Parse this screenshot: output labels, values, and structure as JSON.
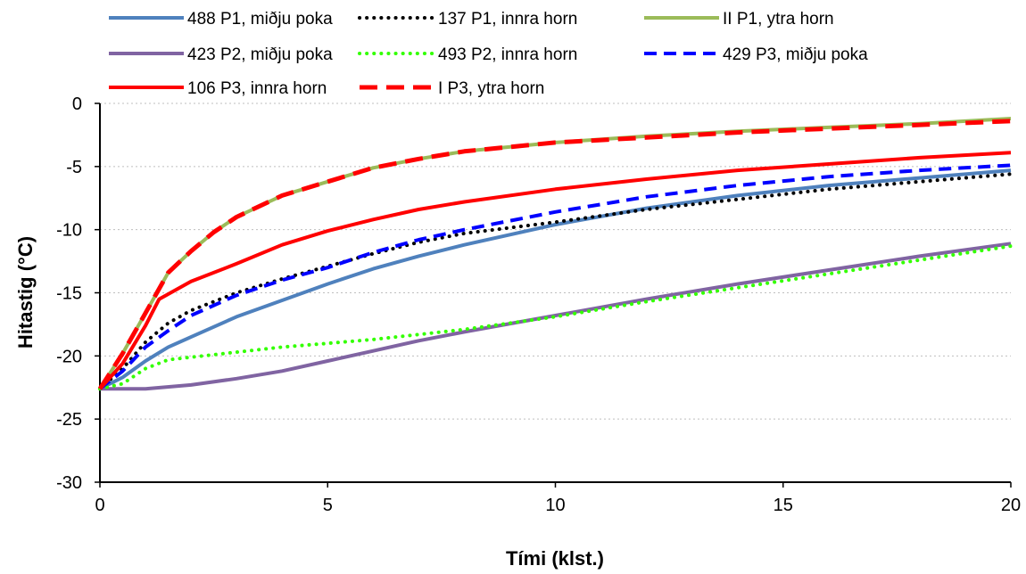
{
  "chart_data": {
    "type": "line",
    "title": "",
    "xlabel": "Tími (klst.)",
    "ylabel": "Hitastig (°C)",
    "xlim": [
      0,
      20
    ],
    "ylim": [
      -30,
      0
    ],
    "x_ticks": [
      0,
      5,
      10,
      15,
      20
    ],
    "y_ticks": [
      0,
      -5,
      -10,
      -15,
      -20,
      -25,
      -30
    ],
    "grid": "horizontal dotted",
    "legend_position": "top",
    "series": [
      {
        "name": "488 P1, miðju poka",
        "color": "#4F81BD",
        "dash": "solid",
        "points": [
          [
            0,
            -22.6
          ],
          [
            0.5,
            -21.7
          ],
          [
            1,
            -20.4
          ],
          [
            1.5,
            -19.3
          ],
          [
            2,
            -18.5
          ],
          [
            3,
            -16.9
          ],
          [
            4,
            -15.6
          ],
          [
            5,
            -14.3
          ],
          [
            6,
            -13.1
          ],
          [
            7,
            -12.1
          ],
          [
            8,
            -11.2
          ],
          [
            10,
            -9.6
          ],
          [
            12,
            -8.3
          ],
          [
            14,
            -7.3
          ],
          [
            16,
            -6.5
          ],
          [
            18,
            -5.9
          ],
          [
            20,
            -5.3
          ]
        ]
      },
      {
        "name": "137 P1, innra horn",
        "color": "#000000",
        "dash": "dotted",
        "points": [
          [
            0,
            -22.6
          ],
          [
            0.5,
            -21
          ],
          [
            1,
            -18.9
          ],
          [
            1.5,
            -17.4
          ],
          [
            2,
            -16.4
          ],
          [
            3,
            -15
          ],
          [
            4,
            -13.9
          ],
          [
            5,
            -12.9
          ],
          [
            6,
            -11.9
          ],
          [
            7,
            -11
          ],
          [
            8,
            -10.3
          ],
          [
            10,
            -9.4
          ],
          [
            12,
            -8.4
          ],
          [
            14,
            -7.6
          ],
          [
            16,
            -6.8
          ],
          [
            18,
            -6.2
          ],
          [
            20,
            -5.6
          ]
        ]
      },
      {
        "name": "II P1, ytra horn",
        "color": "#9BBB59",
        "dash": "solid",
        "points": [
          [
            0,
            -22.6
          ],
          [
            0.5,
            -19.8
          ],
          [
            1,
            -16.6
          ],
          [
            1.5,
            -13.4
          ],
          [
            2,
            -11.7
          ],
          [
            2.5,
            -10.2
          ],
          [
            3,
            -9
          ],
          [
            4,
            -7.3
          ],
          [
            5,
            -6.2
          ],
          [
            6,
            -5.1
          ],
          [
            7,
            -4.4
          ],
          [
            8,
            -3.8
          ],
          [
            10,
            -3.1
          ],
          [
            12,
            -2.6
          ],
          [
            14,
            -2.2
          ],
          [
            16,
            -1.9
          ],
          [
            18,
            -1.6
          ],
          [
            20,
            -1.2
          ]
        ]
      },
      {
        "name": "423 P2, miðju poka",
        "color": "#8064A2",
        "dash": "solid",
        "points": [
          [
            0,
            -22.6
          ],
          [
            1,
            -22.6
          ],
          [
            2,
            -22.3
          ],
          [
            3,
            -21.8
          ],
          [
            4,
            -21.2
          ],
          [
            5,
            -20.4
          ],
          [
            6,
            -19.6
          ],
          [
            7,
            -18.8
          ],
          [
            8,
            -18.1
          ],
          [
            10,
            -16.8
          ],
          [
            12,
            -15.5
          ],
          [
            14,
            -14.3
          ],
          [
            16,
            -13.2
          ],
          [
            18,
            -12.1
          ],
          [
            20,
            -11.1
          ]
        ]
      },
      {
        "name": "493 P2, innra horn",
        "color": "#33FF00",
        "dash": "dotted",
        "points": [
          [
            0,
            -22.6
          ],
          [
            0.5,
            -22.2
          ],
          [
            1,
            -21
          ],
          [
            1.5,
            -20.3
          ],
          [
            2,
            -20.1
          ],
          [
            3,
            -19.7
          ],
          [
            4,
            -19.3
          ],
          [
            5,
            -19
          ],
          [
            6,
            -18.7
          ],
          [
            7,
            -18.3
          ],
          [
            8,
            -17.9
          ],
          [
            10,
            -16.9
          ],
          [
            12,
            -15.7
          ],
          [
            14,
            -14.6
          ],
          [
            16,
            -13.5
          ],
          [
            18,
            -12.4
          ],
          [
            20,
            -11.3
          ]
        ]
      },
      {
        "name": "429 P3, miðju poka",
        "color": "#0000FF",
        "dash": "dashed",
        "points": [
          [
            0,
            -22.6
          ],
          [
            0.5,
            -21.2
          ],
          [
            1,
            -19.3
          ],
          [
            1.5,
            -18
          ],
          [
            2,
            -16.8
          ],
          [
            3,
            -15.2
          ],
          [
            4,
            -14
          ],
          [
            5,
            -13
          ],
          [
            6,
            -11.8
          ],
          [
            7,
            -10.8
          ],
          [
            8,
            -10
          ],
          [
            10,
            -8.6
          ],
          [
            12,
            -7.4
          ],
          [
            14,
            -6.5
          ],
          [
            16,
            -5.8
          ],
          [
            18,
            -5.3
          ],
          [
            20,
            -4.9
          ]
        ]
      },
      {
        "name": "106 P3, innra horn",
        "color": "#FF0000",
        "dash": "solid",
        "points": [
          [
            0,
            -22.6
          ],
          [
            0.5,
            -20.6
          ],
          [
            1,
            -17.6
          ],
          [
            1.3,
            -15.5
          ],
          [
            2,
            -14.1
          ],
          [
            3,
            -12.7
          ],
          [
            4,
            -11.2
          ],
          [
            5,
            -10.1
          ],
          [
            6,
            -9.2
          ],
          [
            7,
            -8.4
          ],
          [
            8,
            -7.8
          ],
          [
            10,
            -6.8
          ],
          [
            12,
            -6
          ],
          [
            14,
            -5.3
          ],
          [
            16,
            -4.8
          ],
          [
            18,
            -4.3
          ],
          [
            20,
            -3.9
          ]
        ]
      },
      {
        "name": "I P3, ytra horn",
        "color": "#FF0000",
        "dash": "longdash",
        "points": [
          [
            0,
            -22.6
          ],
          [
            0.5,
            -19.8
          ],
          [
            1,
            -16.6
          ],
          [
            1.5,
            -13.4
          ],
          [
            2,
            -11.7
          ],
          [
            2.5,
            -10.2
          ],
          [
            3,
            -9
          ],
          [
            4,
            -7.3
          ],
          [
            5,
            -6.2
          ],
          [
            6,
            -5.1
          ],
          [
            7,
            -4.4
          ],
          [
            8,
            -3.8
          ],
          [
            10,
            -3.1
          ],
          [
            12,
            -2.7
          ],
          [
            14,
            -2.3
          ],
          [
            16,
            -2
          ],
          [
            18,
            -1.7
          ],
          [
            20,
            -1.4
          ]
        ]
      }
    ]
  }
}
